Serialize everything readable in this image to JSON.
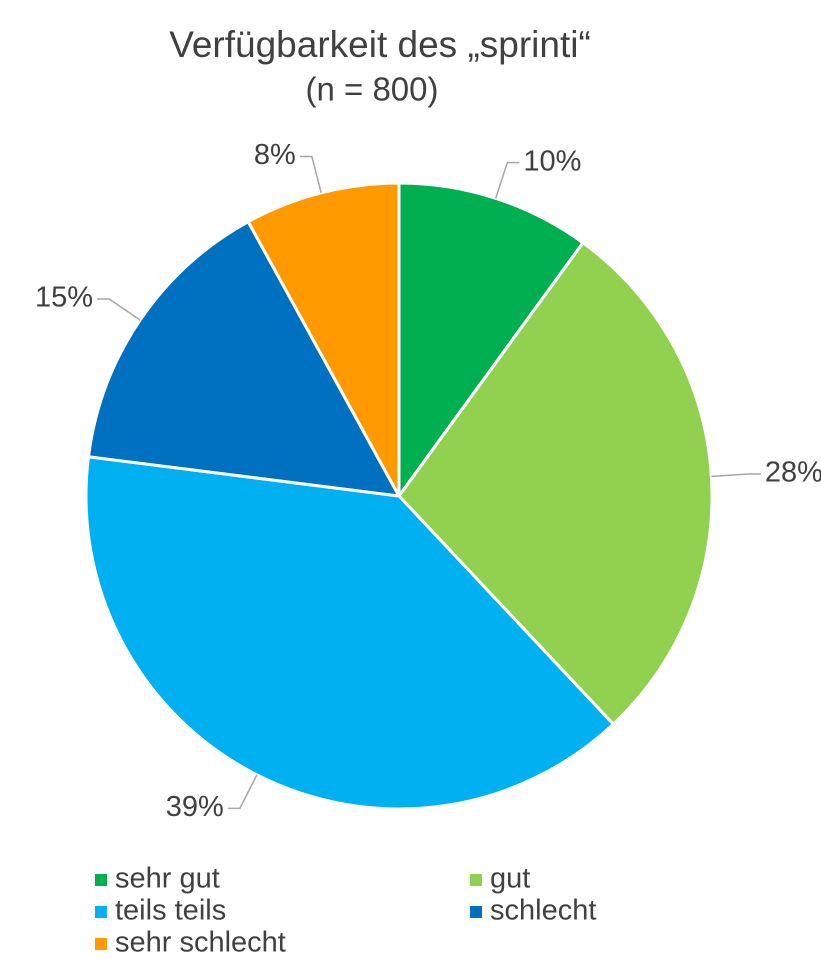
{
  "chart_data": {
    "type": "pie",
    "title": "Verfügbarkeit des „sprinti“",
    "subtitle": "(n = 800)",
    "categories": [
      "sehr gut",
      "gut",
      "teils teils",
      "schlecht",
      "sehr schlecht"
    ],
    "values": [
      10,
      28,
      39,
      15,
      8
    ],
    "value_labels": [
      "10%",
      "28%",
      "39%",
      "15%",
      "8%"
    ],
    "colors": [
      "#00b050",
      "#92d050",
      "#00b0f0",
      "#0070c0",
      "#ff9900"
    ]
  }
}
